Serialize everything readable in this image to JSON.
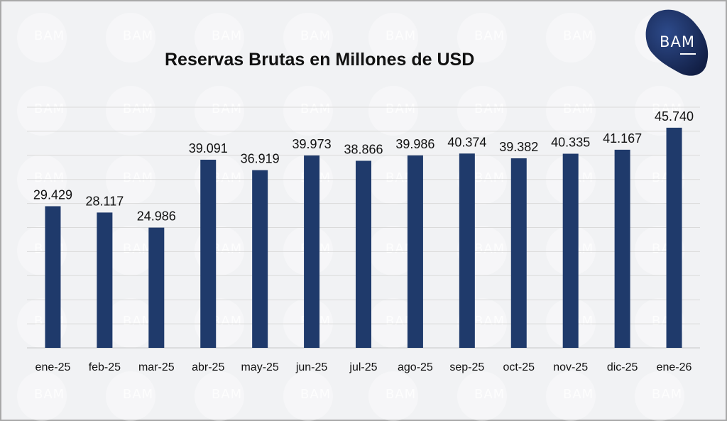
{
  "title": "Reservas Brutas en Millones de USD",
  "logo": {
    "text": "BAM",
    "color": "#1a2b5c"
  },
  "watermark": "BAM",
  "bar_color": "#1f3a6b",
  "chart_data": {
    "type": "bar",
    "title": "Reservas Brutas en Millones de USD",
    "categories": [
      "ene-25",
      "feb-25",
      "mar-25",
      "abr-25",
      "may-25",
      "jun-25",
      "jul-25",
      "ago-25",
      "sep-25",
      "oct-25",
      "nov-25",
      "dic-25",
      "ene-26"
    ],
    "values": [
      29429,
      28117,
      24986,
      39091,
      36919,
      39973,
      38866,
      39986,
      40374,
      39382,
      40335,
      41167,
      45740
    ],
    "value_labels": [
      "29.429",
      "28.117",
      "24.986",
      "39.091",
      "36.919",
      "39.973",
      "38.866",
      "39.986",
      "40.374",
      "39.382",
      "40.335",
      "41.167",
      "45.740"
    ],
    "xlabel": "",
    "ylabel": "",
    "ylim": [
      0,
      50000
    ],
    "grid": true,
    "legend": false
  }
}
